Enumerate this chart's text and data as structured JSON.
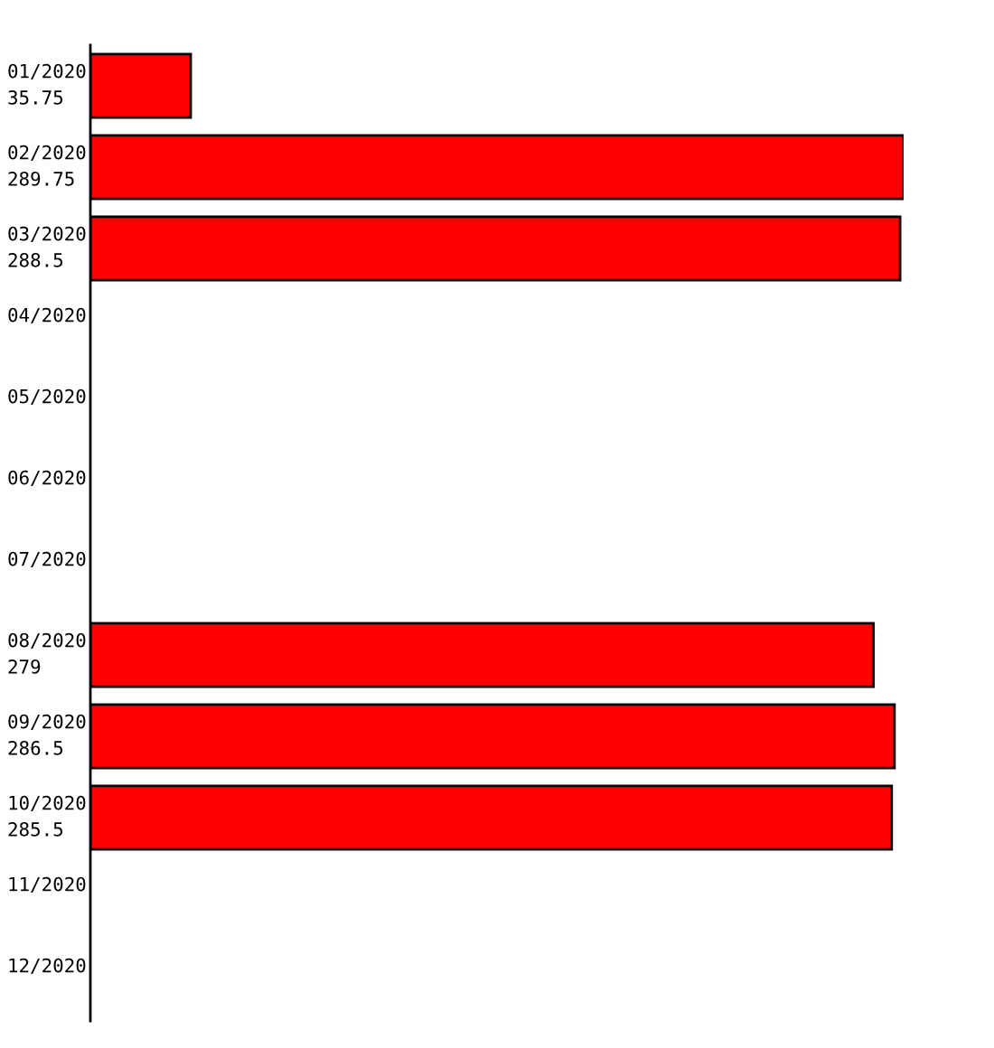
{
  "chart_data": {
    "type": "bar",
    "orientation": "horizontal",
    "categories": [
      "01/2020",
      "02/2020",
      "03/2020",
      "04/2020",
      "05/2020",
      "06/2020",
      "07/2020",
      "08/2020",
      "09/2020",
      "10/2020",
      "11/2020",
      "12/2020"
    ],
    "values": [
      35.75,
      289.75,
      288.5,
      null,
      null,
      null,
      null,
      279,
      286.5,
      285.5,
      null,
      null
    ],
    "value_labels": [
      "35.75",
      "289.75",
      "288.5",
      null,
      null,
      null,
      null,
      "279",
      "286.5",
      "285.5",
      null,
      null
    ],
    "color": "#ff0000"
  }
}
